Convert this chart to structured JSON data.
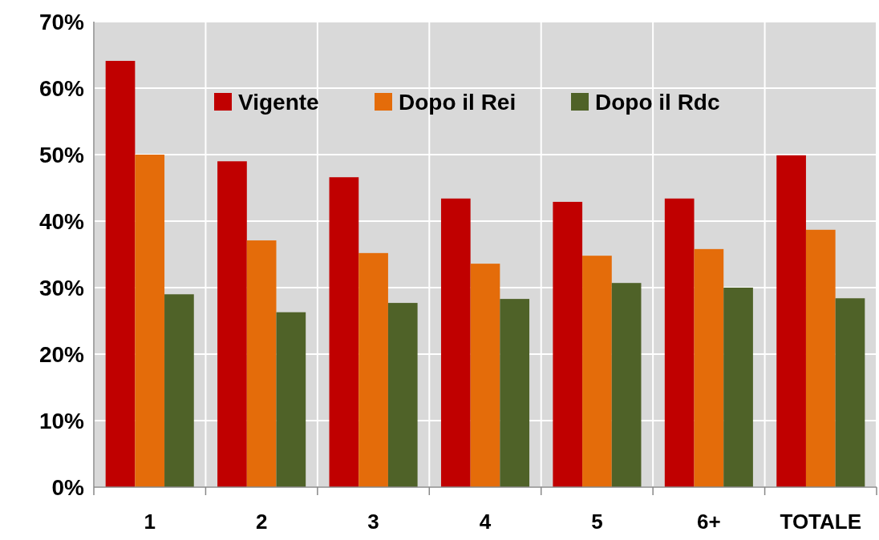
{
  "chart_data": {
    "type": "bar",
    "categories": [
      "1",
      "2",
      "3",
      "4",
      "5",
      "6+",
      "TOTALE"
    ],
    "series": [
      {
        "name": "Vigente",
        "color": "#c00000",
        "values": [
          64.1,
          49,
          46.6,
          43.4,
          42.9,
          43.4,
          49.9
        ]
      },
      {
        "name": "Dopo il Rei",
        "color": "#e46c0a",
        "values": [
          50,
          37.1,
          35.2,
          33.6,
          34.8,
          35.8,
          38.7
        ]
      },
      {
        "name": "Dopo il Rdc",
        "color": "#4f6228",
        "values": [
          29,
          26.3,
          27.7,
          28.3,
          30.7,
          30,
          28.4
        ]
      }
    ],
    "ylim": [
      0,
      70
    ],
    "yticks": [
      {
        "value": 0,
        "label": "0%"
      },
      {
        "value": 10,
        "label": "10%"
      },
      {
        "value": 20,
        "label": "20%"
      },
      {
        "value": 30,
        "label": "30%"
      },
      {
        "value": 40,
        "label": "40%"
      },
      {
        "value": 50,
        "label": "50%"
      },
      {
        "value": 60,
        "label": "60%"
      },
      {
        "value": 70,
        "label": "70%"
      }
    ],
    "grid": true,
    "legend": "top"
  }
}
